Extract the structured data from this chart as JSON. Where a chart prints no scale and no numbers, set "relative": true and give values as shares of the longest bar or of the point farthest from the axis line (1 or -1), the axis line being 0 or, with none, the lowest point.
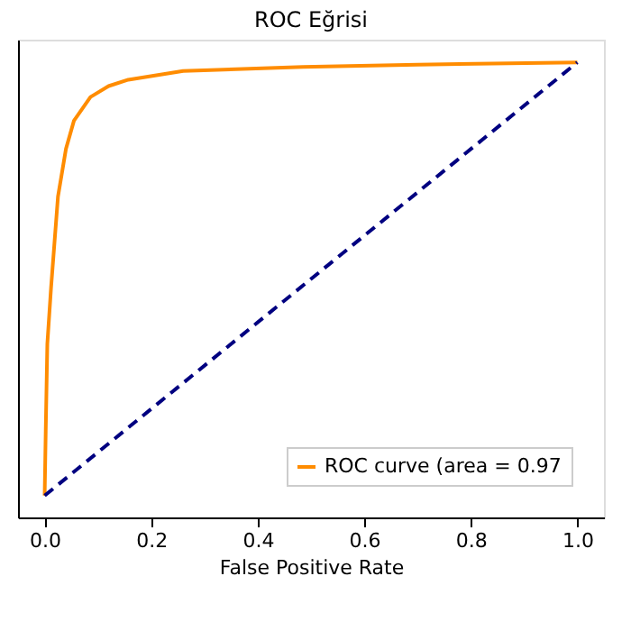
{
  "chart_data": {
    "type": "line",
    "title": "ROC Eğrisi",
    "xlabel": "False Positive Rate",
    "relative": true,
    "xlim": [
      -0.05,
      1.05
    ],
    "xticks": [
      {
        "value": 0,
        "label": "0.0"
      },
      0.2,
      0.4,
      0.6,
      0.8,
      {
        "value": 1,
        "label": "1.0"
      }
    ],
    "grid": false,
    "legend": "bottom right",
    "marker": "none",
    "series": [
      {
        "name": "ROC curve (area = 0.97",
        "color": "#ff8c00",
        "line_style": "solid",
        "x": [
          0,
          0.002,
          0.005,
          0.012,
          0.025,
          0.04,
          0.055,
          0.086,
          0.12,
          0.157,
          0.26,
          0.485,
          0.7,
          1
        ],
        "values": [
          0.048,
          0.19,
          0.381,
          0.505,
          0.705,
          0.81,
          0.872,
          0.924,
          0.948,
          0.962,
          0.981,
          0.99,
          0.995,
          1
        ]
      },
      {
        "color": "#000080",
        "line_style": "dashed",
        "x": [
          0,
          1
        ],
        "values": [
          0.048,
          1
        ]
      }
    ]
  }
}
